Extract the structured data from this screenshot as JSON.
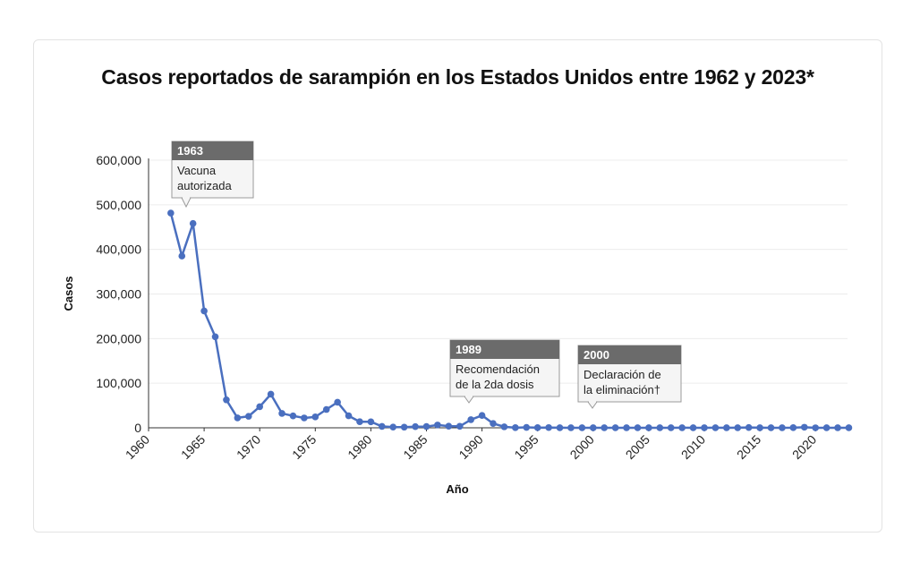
{
  "chart_data": {
    "type": "line",
    "title": "Casos reportados de sarampión en los Estados Unidos entre 1962 y 2023*",
    "xlabel": "Año",
    "ylabel": "Casos",
    "xlim": [
      1960,
      2023
    ],
    "ylim": [
      0,
      600000
    ],
    "x_ticks": [
      "1960",
      "1965",
      "1970",
      "1975",
      "1980",
      "1985",
      "1990",
      "1995",
      "2000",
      "2005",
      "2010",
      "2015",
      "2020"
    ],
    "y_ticks": [
      "0",
      "100,000",
      "200,000",
      "300,000",
      "400,000",
      "500,000",
      "600,000"
    ],
    "grid": true,
    "color": "#4a6fbf",
    "series": [
      {
        "x": [
          1962,
          1963,
          1964,
          1965,
          1966,
          1967,
          1968,
          1969,
          1970,
          1971,
          1972,
          1973,
          1974,
          1975,
          1976,
          1977,
          1978,
          1979,
          1980,
          1981,
          1982,
          1983,
          1984,
          1985,
          1986,
          1987,
          1988,
          1989,
          1990,
          1991,
          1992,
          1993,
          1994,
          1995,
          1996,
          1997,
          1998,
          1999,
          2000,
          2001,
          2002,
          2003,
          2004,
          2005,
          2006,
          2007,
          2008,
          2009,
          2010,
          2011,
          2012,
          2013,
          2014,
          2015,
          2016,
          2017,
          2018,
          2019,
          2020,
          2021,
          2022,
          2023
        ],
        "values": [
          481530,
          385156,
          458083,
          261904,
          204136,
          62705,
          22231,
          25826,
          47351,
          75290,
          32275,
          26690,
          22094,
          24374,
          41126,
          57345,
          26871,
          13597,
          13506,
          3124,
          1714,
          1497,
          2587,
          2822,
          6282,
          3655,
          3396,
          18193,
          27786,
          9643,
          2237,
          312,
          963,
          309,
          508,
          138,
          100,
          100,
          86,
          116,
          44,
          56,
          37,
          66,
          55,
          43,
          140,
          71,
          63,
          220,
          55,
          187,
          667,
          188,
          86,
          120,
          375,
          1274,
          13,
          49,
          121,
          59
        ]
      }
    ],
    "annotations": [
      {
        "year": "1963",
        "lines": [
          "Vacuna",
          "autorizada"
        ]
      },
      {
        "year": "1989",
        "lines": [
          "Recomendación",
          "de la 2da dosis"
        ]
      },
      {
        "year": "2000",
        "lines": [
          "Declaración de",
          "la eliminación†"
        ]
      }
    ]
  }
}
